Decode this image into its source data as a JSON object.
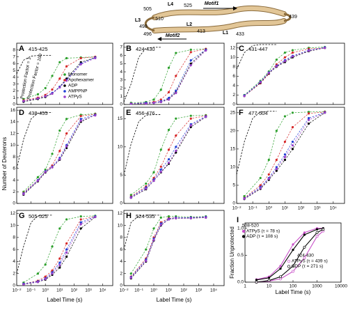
{
  "diagram": {
    "labels": [
      "505",
      "L4",
      "525",
      "Motif1",
      "L3",
      "510",
      "498",
      "496",
      "L2",
      "413",
      "Motif2",
      "439",
      "433",
      "L1"
    ]
  },
  "chart_data": [
    {
      "type": "line",
      "label": "A",
      "subtitle": "415-425",
      "xscale": "log",
      "linestyle": "dashed",
      "legend": "right",
      "annotations": [
        "Protection Factor = 1",
        "Protection Factor = 100"
      ],
      "xlim": [
        0.01,
        50000
      ],
      "xticks": [
        0.01,
        0.1,
        1,
        10,
        100,
        1000,
        10000
      ],
      "ylim": [
        0,
        9
      ],
      "yticks": [
        0,
        1,
        2,
        3,
        4,
        5,
        6,
        7,
        8
      ],
      "x": [
        0.03,
        0.3,
        1,
        3,
        10,
        30,
        300,
        3000
      ],
      "reference": {
        "color": "#000000",
        "x": [
          0.01,
          0.03,
          0.1,
          0.3,
          1,
          3
        ],
        "values": [
          4.5,
          6.5,
          7.1,
          7.2,
          7.2,
          7.2
        ]
      },
      "series": [
        {
          "name": "Monomer",
          "color": "#2ca02c",
          "values": [
            0.8,
            1.5,
            2.4,
            4.2,
            6.2,
            6.8,
            6.9,
            7.0
          ]
        },
        {
          "name": "Apohexamer",
          "color": "#d62728",
          "values": [
            0.6,
            1.0,
            1.4,
            2.2,
            3.8,
            5.6,
            6.8,
            7.0
          ]
        },
        {
          "name": "ADP",
          "color": "#000000",
          "values": [
            0.4,
            0.8,
            1.1,
            1.6,
            2.6,
            3.8,
            6.2,
            6.9
          ]
        },
        {
          "name": "AMPPNP",
          "color": "#1f3fd6",
          "values": [
            0.5,
            0.9,
            1.2,
            1.7,
            2.6,
            3.6,
            6.0,
            6.9
          ]
        },
        {
          "name": "ATPγS",
          "color": "#9a3fc9",
          "values": [
            0.5,
            0.9,
            1.2,
            1.6,
            2.5,
            3.5,
            5.9,
            6.8
          ]
        }
      ]
    },
    {
      "type": "line",
      "label": "B",
      "subtitle": "424-430",
      "xscale": "log",
      "linestyle": "dashed",
      "xlim": [
        0.01,
        50000
      ],
      "xticks": [
        0.01,
        0.1,
        1,
        10,
        100,
        1000,
        10000
      ],
      "ylim": [
        0,
        7.5
      ],
      "yticks": [
        0,
        1,
        2,
        3,
        4,
        5,
        6,
        7
      ],
      "x": [
        0.03,
        0.3,
        1,
        3,
        10,
        30,
        300,
        3000
      ],
      "reference": {
        "color": "#000000",
        "x": [
          0.01,
          0.03,
          0.1,
          0.3,
          1,
          3
        ],
        "values": [
          0.3,
          2.5,
          5.8,
          6.9,
          7.0,
          7.0
        ]
      },
      "series": [
        {
          "color": "#2ca02c",
          "values": [
            0.2,
            0.3,
            0.6,
            1.8,
            4.5,
            6.3,
            6.7,
            6.8
          ]
        },
        {
          "color": "#d62728",
          "values": [
            0.1,
            0.2,
            0.3,
            0.6,
            1.5,
            3.5,
            6.4,
            6.8
          ]
        },
        {
          "color": "#000000",
          "values": [
            0.1,
            0.1,
            0.2,
            0.3,
            0.7,
            1.5,
            5.0,
            6.7
          ]
        },
        {
          "color": "#1f3fd6",
          "values": [
            0.1,
            0.2,
            0.2,
            0.4,
            0.8,
            1.7,
            5.4,
            6.7
          ]
        },
        {
          "color": "#9a3fc9",
          "values": [
            0.1,
            0.1,
            0.2,
            0.3,
            0.6,
            1.4,
            4.8,
            6.6
          ]
        }
      ]
    },
    {
      "type": "line",
      "label": "C",
      "subtitle": "431-447",
      "xscale": "log",
      "linestyle": "dashed",
      "xlim": [
        0.01,
        50000
      ],
      "xticks": [
        0.01,
        0.1,
        1,
        10,
        100,
        1000,
        10000
      ],
      "ylim": [
        0,
        13
      ],
      "yticks": [
        0,
        2,
        4,
        6,
        8,
        10,
        12
      ],
      "x": [
        0.03,
        0.3,
        1,
        3,
        10,
        30,
        300,
        3000
      ],
      "reference": {
        "color": "#000000",
        "x": [
          0.01,
          0.03,
          0.1,
          0.3,
          1,
          3
        ],
        "values": [
          7.5,
          11.0,
          12.5,
          12.7,
          12.7,
          12.7
        ]
      },
      "series": [
        {
          "color": "#2ca02c",
          "values": [
            2.0,
            5.0,
            7.0,
            9.5,
            11.0,
            11.5,
            12.0,
            12.2
          ]
        },
        {
          "color": "#d62728",
          "values": [
            1.8,
            4.5,
            6.5,
            8.5,
            10.0,
            11.0,
            11.8,
            12.0
          ]
        },
        {
          "color": "#000000",
          "values": [
            1.8,
            4.6,
            6.6,
            8.0,
            9.0,
            10.0,
            11.3,
            12.0
          ]
        },
        {
          "color": "#1f3fd6",
          "values": [
            1.9,
            4.8,
            6.8,
            8.2,
            9.4,
            10.3,
            11.5,
            12.1
          ]
        },
        {
          "color": "#9a3fc9",
          "values": [
            1.8,
            4.7,
            6.7,
            8.1,
            9.2,
            10.2,
            11.4,
            12.0
          ]
        }
      ]
    },
    {
      "type": "line",
      "label": "D",
      "subtitle": "438-455",
      "xscale": "log",
      "linestyle": "dashed",
      "ylabel": "Number of Deuterons",
      "xlim": [
        0.01,
        50000
      ],
      "xticks": [
        0.01,
        0.1,
        1,
        10,
        100,
        1000,
        10000
      ],
      "ylim": [
        0,
        16.5
      ],
      "yticks": [
        0,
        2,
        4,
        6,
        8,
        10,
        12,
        14,
        16
      ],
      "x": [
        0.03,
        0.3,
        1,
        3,
        10,
        30,
        300,
        3000
      ],
      "reference": {
        "color": "#000000",
        "x": [
          0.01,
          0.03,
          0.1,
          0.3,
          1,
          3
        ],
        "values": [
          6.0,
          11.0,
          14.5,
          15.5,
          15.6,
          15.6
        ]
      },
      "series": [
        {
          "color": "#2ca02c",
          "values": [
            2.0,
            4.5,
            5.8,
            8.5,
            12.5,
            14.5,
            15.2,
            15.4
          ]
        },
        {
          "color": "#d62728",
          "values": [
            1.8,
            4.0,
            5.5,
            6.5,
            9.0,
            12.0,
            15.0,
            15.3
          ]
        },
        {
          "color": "#000000",
          "values": [
            1.5,
            3.8,
            5.3,
            6.2,
            7.5,
            9.5,
            14.0,
            15.2
          ]
        },
        {
          "color": "#1f3fd6",
          "values": [
            1.7,
            4.0,
            5.5,
            6.3,
            7.8,
            10.0,
            14.5,
            15.2
          ]
        },
        {
          "color": "#9a3fc9",
          "values": [
            1.6,
            3.9,
            5.4,
            6.2,
            7.6,
            9.8,
            14.2,
            15.1
          ]
        }
      ]
    },
    {
      "type": "line",
      "label": "E",
      "subtitle": "456-476",
      "xscale": "log",
      "linestyle": "dashed",
      "xlim": [
        0.01,
        50000
      ],
      "xticks": [
        0.01,
        0.1,
        1,
        10,
        100,
        1000,
        10000
      ],
      "ylim": [
        0,
        17
      ],
      "yticks": [
        0,
        5,
        10,
        15
      ],
      "x": [
        0.03,
        0.3,
        1,
        3,
        10,
        30,
        300,
        3000
      ],
      "reference": {
        "color": "#000000",
        "x": [
          0.01,
          0.03,
          0.1,
          0.3,
          1,
          3
        ],
        "values": [
          5.0,
          10.5,
          14.5,
          15.6,
          15.7,
          15.7
        ]
      },
      "series": [
        {
          "color": "#2ca02c",
          "values": [
            1.5,
            3.5,
            5.5,
            9.5,
            13.0,
            15.0,
            15.5,
            15.6
          ]
        },
        {
          "color": "#d62728",
          "values": [
            1.2,
            3.0,
            4.5,
            6.5,
            9.5,
            12.0,
            15.0,
            15.5
          ]
        },
        {
          "color": "#000000",
          "values": [
            1.0,
            2.5,
            4.0,
            5.5,
            7.0,
            9.0,
            13.5,
            15.3
          ]
        },
        {
          "color": "#1f3fd6",
          "values": [
            1.1,
            2.8,
            4.2,
            6.0,
            7.8,
            10.0,
            14.0,
            15.4
          ]
        },
        {
          "color": "#9a3fc9",
          "values": [
            1.0,
            2.6,
            4.0,
            5.6,
            7.2,
            9.3,
            13.8,
            15.3
          ]
        }
      ]
    },
    {
      "type": "line",
      "label": "F",
      "subtitle": "477-504",
      "xscale": "log",
      "linestyle": "dashed",
      "xlim": [
        0.01,
        50000
      ],
      "xticks": [
        {
          "value": 0.01,
          "label": "10⁻²"
        },
        {
          "value": 0.1,
          "label": "10⁻¹"
        },
        {
          "value": 1,
          "label": "10⁰"
        },
        {
          "value": 10,
          "label": "10¹"
        },
        {
          "value": 100,
          "label": "10²"
        },
        {
          "value": 1000,
          "label": "10³"
        },
        {
          "value": 10000,
          "label": "10⁴"
        }
      ],
      "ylim": [
        0,
        26.5
      ],
      "yticks": [
        0,
        5,
        10,
        15,
        20,
        25
      ],
      "x": [
        0.03,
        0.3,
        1,
        3,
        10,
        30,
        300,
        3000
      ],
      "reference": {
        "color": "#000000",
        "x": [
          0.01,
          0.03,
          0.1,
          0.3,
          1,
          3
        ],
        "values": [
          8.0,
          17.0,
          23.5,
          25.2,
          25.4,
          25.4
        ]
      },
      "series": [
        {
          "color": "#2ca02c",
          "values": [
            2.0,
            7.0,
            12.0,
            20.0,
            24.0,
            25.0,
            25.2,
            25.3
          ]
        },
        {
          "color": "#d62728",
          "values": [
            1.5,
            5.0,
            8.0,
            12.0,
            17.0,
            21.0,
            24.8,
            25.2
          ]
        },
        {
          "color": "#000000",
          "values": [
            1.2,
            4.0,
            6.5,
            9.0,
            12.0,
            15.0,
            22.0,
            25.0
          ]
        },
        {
          "color": "#1f3fd6",
          "values": [
            1.4,
            4.5,
            7.0,
            10.0,
            13.5,
            17.0,
            23.5,
            25.1
          ]
        },
        {
          "color": "#9a3fc9",
          "values": [
            1.3,
            4.2,
            6.8,
            9.5,
            12.8,
            16.0,
            23.0,
            25.0
          ]
        }
      ]
    },
    {
      "type": "line",
      "label": "G",
      "subtitle": "505-525",
      "xscale": "log",
      "linestyle": "dashed",
      "xlabel": "Label Time (s)",
      "xlim": [
        0.01,
        50000
      ],
      "xticks": [
        {
          "value": 0.01,
          "label": "10⁻²"
        },
        {
          "value": 0.1,
          "label": "10⁻¹"
        },
        {
          "value": 1,
          "label": "10⁰"
        },
        {
          "value": 10,
          "label": "10¹"
        },
        {
          "value": 100,
          "label": "10²"
        },
        {
          "value": 1000,
          "label": "10³"
        },
        {
          "value": 10000,
          "label": "10⁴"
        }
      ],
      "ylim": [
        0,
        12.5
      ],
      "yticks": [
        0,
        2,
        4,
        6,
        8,
        10,
        12
      ],
      "x": [
        0.03,
        0.3,
        1,
        3,
        10,
        30,
        300,
        3000
      ],
      "reference": {
        "color": "#000000",
        "x": [
          0.01,
          0.03,
          0.1,
          0.3,
          1,
          3
        ],
        "values": [
          2.0,
          6.5,
          10.5,
          11.6,
          11.7,
          11.7
        ]
      },
      "series": [
        {
          "color": "#2ca02c",
          "values": [
            0.5,
            2.0,
            3.5,
            6.5,
            9.5,
            11.0,
            11.5,
            11.6
          ]
        },
        {
          "color": "#d62728",
          "values": [
            0.3,
            0.8,
            1.5,
            2.5,
            4.5,
            7.0,
            11.0,
            11.5
          ]
        },
        {
          "color": "#000000",
          "values": [
            0.2,
            0.6,
            1.0,
            1.8,
            3.0,
            4.8,
            9.5,
            11.4
          ]
        },
        {
          "color": "#1f3fd6",
          "values": [
            0.3,
            0.7,
            1.2,
            2.2,
            3.8,
            6.0,
            10.5,
            11.5
          ]
        },
        {
          "color": "#9a3fc9",
          "values": [
            0.2,
            0.6,
            1.1,
            2.0,
            3.4,
            5.5,
            10.2,
            11.4
          ]
        }
      ]
    },
    {
      "type": "line",
      "label": "H",
      "subtitle": "524-535",
      "xscale": "log",
      "linestyle": "dashed",
      "xlabel": "Label Time (s)",
      "xlim": [
        0.01,
        50000
      ],
      "xticks": [
        {
          "value": 0.01,
          "label": "10⁻²"
        },
        {
          "value": 0.1,
          "label": "10⁻¹"
        },
        {
          "value": 1,
          "label": "10⁰"
        },
        {
          "value": 10,
          "label": "10¹"
        },
        {
          "value": 100,
          "label": "10²"
        },
        {
          "value": 1000,
          "label": "10³"
        },
        {
          "value": 10000,
          "label": "10⁴"
        }
      ],
      "ylim": [
        0,
        12.5
      ],
      "yticks": [
        0,
        2,
        4,
        6,
        8,
        10,
        12
      ],
      "x": [
        0.03,
        0.3,
        1,
        3,
        10,
        30,
        300,
        3000
      ],
      "reference": {
        "color": "#000000",
        "x": [
          0.01,
          0.03,
          0.1,
          0.3,
          1,
          3
        ],
        "values": [
          6.0,
          10.5,
          11.6,
          11.7,
          11.7,
          11.7
        ]
      },
      "series": [
        {
          "color": "#2ca02c",
          "values": [
            2.0,
            6.0,
            9.5,
            11.3,
            11.5,
            11.5,
            11.4,
            11.5
          ]
        },
        {
          "color": "#d62728",
          "values": [
            1.5,
            4.5,
            8.0,
            10.5,
            11.2,
            11.3,
            11.3,
            11.4
          ]
        },
        {
          "color": "#000000",
          "values": [
            1.2,
            4.0,
            7.5,
            10.0,
            11.0,
            11.2,
            11.2,
            11.3
          ]
        },
        {
          "color": "#1f3fd6",
          "values": [
            1.4,
            4.3,
            7.8,
            10.3,
            11.1,
            11.3,
            11.3,
            11.4
          ]
        },
        {
          "color": "#9a3fc9",
          "values": [
            1.3,
            4.1,
            7.6,
            10.1,
            11.0,
            11.2,
            11.2,
            11.3
          ]
        }
      ]
    },
    {
      "type": "line",
      "label": "I",
      "xscale": "log",
      "linestyle": "solid",
      "legend": "groups",
      "annotations": [
        "508-520",
        "424-430"
      ],
      "xlabel": "Label Time (s)",
      "ylabel": "Fraction Unprotected",
      "xlim": [
        1,
        10000
      ],
      "xticks": [
        1,
        10,
        100,
        1000,
        10000
      ],
      "ylim": [
        0,
        1.1
      ],
      "yticks": [
        {
          "value": 0,
          "label": "0.0"
        },
        {
          "value": 0.5,
          "label": "0.5"
        },
        {
          "value": 1,
          "label": "1.0"
        }
      ],
      "x": [
        3,
        10,
        30,
        100,
        300,
        1000,
        1800
      ],
      "series": [
        {
          "name": "ATPγS (τ = 78 s)",
          "color": "#c84fc8",
          "marker": "filled",
          "values": [
            0.05,
            0.1,
            0.3,
            0.7,
            0.92,
            1.0,
            1.0
          ]
        },
        {
          "name": "ADP (τ = 108 s)",
          "color": "#000000",
          "marker": "filled",
          "values": [
            0.04,
            0.08,
            0.25,
            0.6,
            0.88,
            0.98,
            1.0
          ]
        },
        {
          "name": "ATPγS (τ = 439 s)",
          "color": "#c84fc8",
          "marker": "open",
          "values": [
            0.0,
            0.02,
            0.06,
            0.2,
            0.45,
            0.85,
            0.95
          ]
        },
        {
          "name": "ADP (τ = 271 s)",
          "color": "#000000",
          "marker": "open",
          "values": [
            0.0,
            0.03,
            0.1,
            0.3,
            0.65,
            0.92,
            0.98
          ]
        }
      ]
    }
  ]
}
